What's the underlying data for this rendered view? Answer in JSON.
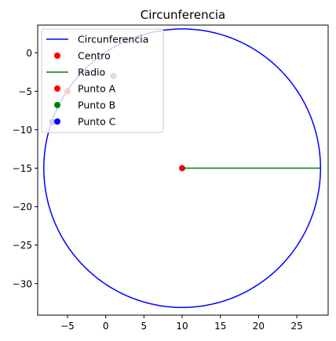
{
  "chart_data": {
    "type": "line",
    "title": "Circunferencia",
    "xlabel": "",
    "ylabel": "",
    "xlim": [
      -8.9,
      29.1
    ],
    "ylim": [
      -34.1,
      3.6
    ],
    "xticks": [
      -5,
      0,
      5,
      10,
      15,
      20,
      25
    ],
    "yticks": [
      0,
      -5,
      -10,
      -15,
      -20,
      -25,
      -30
    ],
    "xtick_labels": [
      "−5",
      "0",
      "5",
      "10",
      "15",
      "20",
      "25"
    ],
    "ytick_labels": [
      "0",
      "−5",
      "−10",
      "−15",
      "−20",
      "−25",
      "−30"
    ],
    "grid": false,
    "legend_position": "upper-left",
    "series": [
      {
        "name": "Circunferencia",
        "kind": "line",
        "color": "#0000ff",
        "center": [
          10,
          -15
        ],
        "radius": 18.1
      },
      {
        "name": "Centro",
        "kind": "point",
        "color": "#ff0000",
        "x": [
          10
        ],
        "y": [
          -15
        ]
      },
      {
        "name": "Radio",
        "kind": "line",
        "color": "#008000",
        "x": [
          10,
          28.1
        ],
        "y": [
          -15,
          -15
        ]
      },
      {
        "name": "Punto A",
        "kind": "point",
        "color": "#ff0000",
        "x": [
          -5
        ],
        "y": [
          -5
        ]
      },
      {
        "name": "Punto B",
        "kind": "point",
        "color": "#008000",
        "x": [
          1
        ],
        "y": [
          -3
        ]
      },
      {
        "name": "Punto C",
        "kind": "point",
        "color": "#0000ff",
        "x": [
          -7
        ],
        "y": [
          -9
        ]
      }
    ]
  }
}
